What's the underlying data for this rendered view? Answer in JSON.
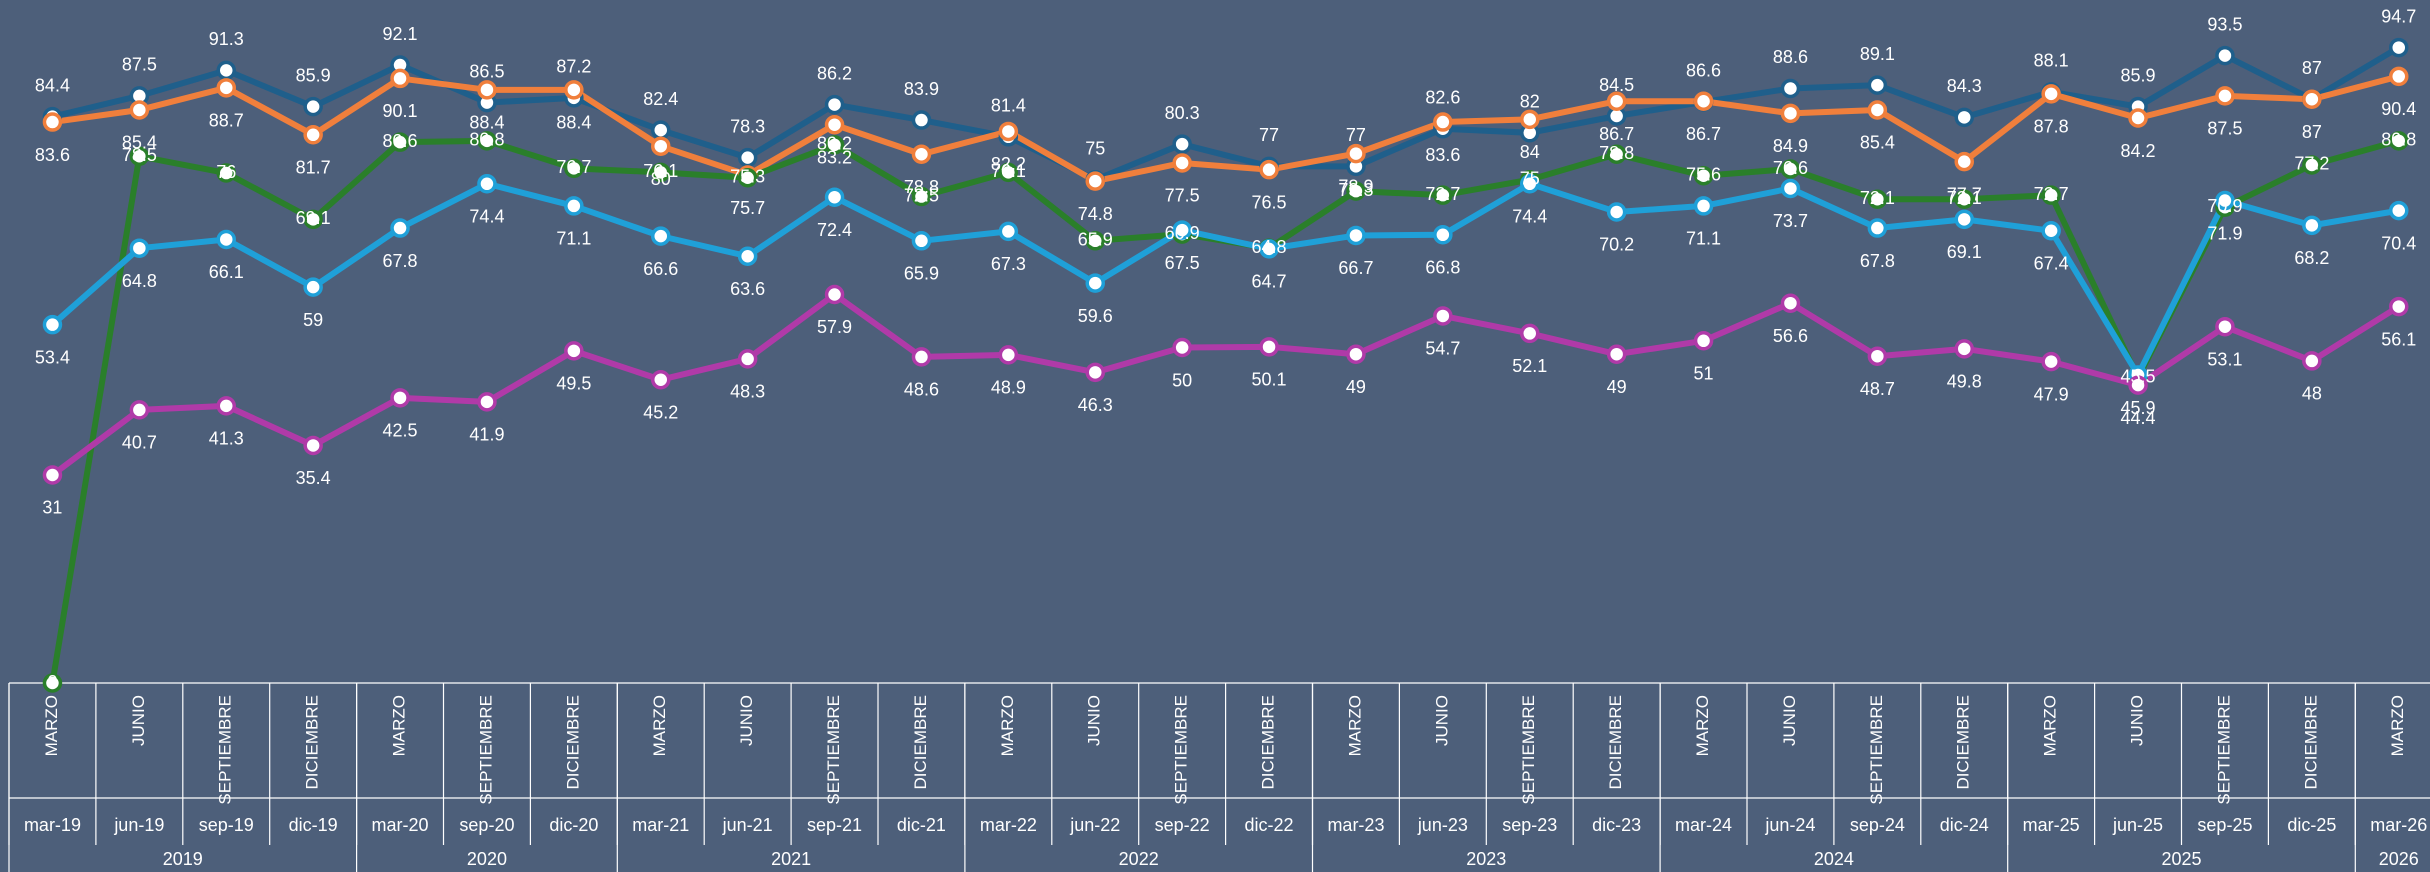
{
  "chart_data": {
    "type": "line",
    "categories": [
      "mar-19",
      "jun-19",
      "sep-19",
      "dic-19",
      "mar-20",
      "sep-20",
      "dic-20",
      "mar-21",
      "jun-21",
      "sep-21",
      "dic-21",
      "mar-22",
      "jun-22",
      "sep-22",
      "dic-22",
      "mar-23",
      "jun-23",
      "sep-23",
      "dic-23",
      "mar-24",
      "jun-24",
      "sep-24",
      "dic-24",
      "mar-25",
      "jun-25",
      "sep-25",
      "dic-25",
      "mar-26"
    ],
    "months": [
      "MARZO",
      "JUNIO",
      "SEPTIEMBRE",
      "DICIEMBRE",
      "MARZO",
      "SEPTIEMBRE",
      "DICIEMBRE",
      "MARZO",
      "JUNIO",
      "SEPTIEMBRE",
      "DICIEMBRE",
      "MARZO",
      "JUNIO",
      "SEPTIEMBRE",
      "DICIEMBRE",
      "MARZO",
      "JUNIO",
      "SEPTIEMBRE",
      "DICIEMBRE",
      "MARZO",
      "JUNIO",
      "SEPTIEMBRE",
      "DICIEMBRE",
      "MARZO",
      "JUNIO",
      "SEPTIEMBRE",
      "DICIEMBRE",
      "MARZO"
    ],
    "years": [
      "2019",
      "2020",
      "2021",
      "2022",
      "2023",
      "2024",
      "2025",
      "2026"
    ],
    "ylim": [
      0,
      100
    ],
    "series": [
      {
        "color": "#1f5f8b",
        "values": [
          84.4,
          87.5,
          91.3,
          85.9,
          92.1,
          86.5,
          87.2,
          82.4,
          78.3,
          86.2,
          83.9,
          81.4,
          75.0,
          80.3,
          77.0,
          77.0,
          82.6,
          82.0,
          84.5,
          86.6,
          88.6,
          89.1,
          84.3,
          88.1,
          85.9,
          93.5,
          87.0,
          94.7
        ]
      },
      {
        "color": "#f07f3c",
        "values": [
          83.6,
          85.4,
          88.7,
          81.7,
          90.1,
          88.4,
          88.4,
          80.0,
          75.7,
          83.2,
          78.8,
          82.2,
          74.8,
          77.5,
          76.5,
          78.9,
          83.6,
          84.0,
          86.7,
          86.7,
          84.9,
          85.4,
          77.7,
          87.8,
          84.2,
          87.5,
          87.0,
          90.4
        ]
      },
      {
        "color": "#2a7f2a",
        "values": [
          0.0,
          78.5,
          76.0,
          69.1,
          80.6,
          80.8,
          76.7,
          76.1,
          75.3,
          80.2,
          72.5,
          76.1,
          65.9,
          66.9,
          64.8,
          73.3,
          72.7,
          75.0,
          78.8,
          75.6,
          76.6,
          72.1,
          72.1,
          72.7,
          45.5,
          70.9,
          77.2,
          80.8
        ]
      },
      {
        "color": "#1fa0d8",
        "values": [
          53.4,
          64.8,
          66.1,
          59.0,
          67.8,
          74.4,
          71.1,
          66.6,
          63.6,
          72.4,
          65.9,
          67.3,
          59.6,
          67.5,
          64.7,
          66.7,
          66.8,
          74.4,
          70.2,
          71.1,
          73.7,
          67.8,
          69.1,
          67.4,
          45.9,
          71.9,
          68.2,
          70.4
        ]
      },
      {
        "color": "#b03aa8",
        "values": [
          31.0,
          40.7,
          41.3,
          35.4,
          42.5,
          41.9,
          49.5,
          45.2,
          48.3,
          57.9,
          48.6,
          48.9,
          46.3,
          50.0,
          50.1,
          49.0,
          54.7,
          52.1,
          49.0,
          51.0,
          56.6,
          48.7,
          49.8,
          47.9,
          44.4,
          53.1,
          48.0,
          56.1
        ]
      }
    ]
  }
}
